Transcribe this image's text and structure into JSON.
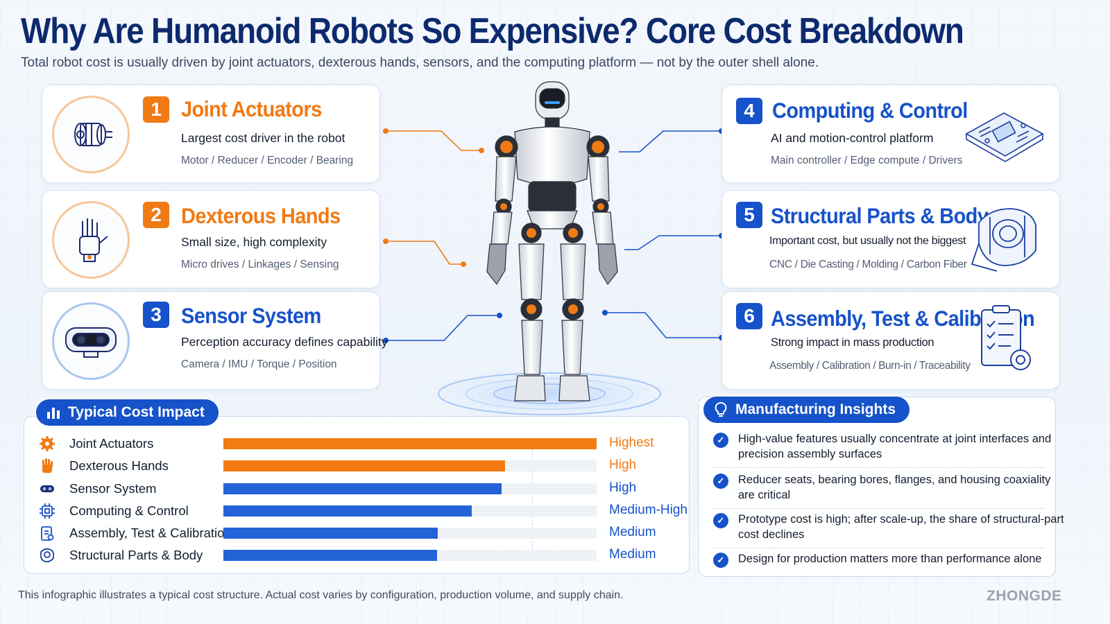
{
  "header": {
    "title": "Why Are Humanoid Robots So Expensive? Core Cost Breakdown",
    "subtitle": "Total robot cost is usually driven by joint actuators, dexterous hands, sensors, and the computing platform — not by the outer shell alone."
  },
  "cards": [
    {
      "number": "1",
      "title": "Joint Actuators",
      "description": "Largest cost driver in the robot",
      "components": "Motor / Reducer / Encoder / Bearing",
      "icon": "actuator-icon",
      "color": "#f07a14"
    },
    {
      "number": "2",
      "title": "Dexterous Hands",
      "description": "Small size, high complexity",
      "components": "Micro drives / Linkages / Sensing",
      "icon": "robot-hand-icon",
      "color": "#f07a14"
    },
    {
      "number": "3",
      "title": "Sensor System",
      "description": "Perception accuracy defines capability",
      "components": "Camera / IMU / Torque / Position",
      "icon": "camera-sensor-icon",
      "color": "#1652c9"
    },
    {
      "number": "4",
      "title": "Computing & Control",
      "description": "AI and motion-control platform",
      "components": "Main controller / Edge compute / Drivers",
      "icon": "circuit-board-icon",
      "color": "#1652c9"
    },
    {
      "number": "5",
      "title": "Structural Parts & Body",
      "description": "Important cost, but usually not the biggest",
      "components": "CNC / Die Casting / Molding / Carbon Fiber",
      "icon": "housing-part-icon",
      "color": "#1652c9"
    },
    {
      "number": "6",
      "title": "Assembly, Test & Calibration",
      "description": "Strong impact in mass production",
      "components": "Assembly / Calibration / Burn-in / Traceability",
      "icon": "checklist-gear-icon",
      "color": "#1652c9"
    }
  ],
  "cost_impact": {
    "heading": "Typical Cost Impact",
    "rows": [
      {
        "label": "Joint Actuators",
        "level": "Highest",
        "fraction": 1.0,
        "color": "#f47b12",
        "icon": "gear-icon"
      },
      {
        "label": "Dexterous Hands",
        "level": "High",
        "fraction": 0.755,
        "color": "#f47b12",
        "icon": "hand-icon"
      },
      {
        "label": "Sensor System",
        "level": "High",
        "fraction": 0.745,
        "color": "#2462d8",
        "icon": "sensor-icon"
      },
      {
        "label": "Computing & Control",
        "level": "Medium-High",
        "fraction": 0.665,
        "color": "#2462d8",
        "icon": "chip-icon"
      },
      {
        "label": "Assembly, Test & Calibration",
        "level": "Medium",
        "fraction": 0.575,
        "color": "#2462d8",
        "icon": "clipboard-icon"
      },
      {
        "label": "Structural Parts & Body",
        "level": "Medium",
        "fraction": 0.572,
        "color": "#2462d8",
        "icon": "part-icon"
      }
    ]
  },
  "insights": {
    "heading": "Manufacturing Insights",
    "items": [
      "High-value features usually concentrate at joint interfaces and precision assembly surfaces",
      "Reducer seats, bearing bores, flanges, and housing coaxiality are critical",
      "Prototype cost is high; after scale-up, the share of structural-part cost declines",
      "Design for production matters more than performance alone"
    ]
  },
  "footer": {
    "note": "This infographic illustrates a typical cost structure. Actual cost varies by configuration, production volume, and supply chain.",
    "brand": "ZHONGDE"
  },
  "colors": {
    "orange": "#f07a14",
    "blue": "#1652c9",
    "navy": "#0d2a6e"
  }
}
